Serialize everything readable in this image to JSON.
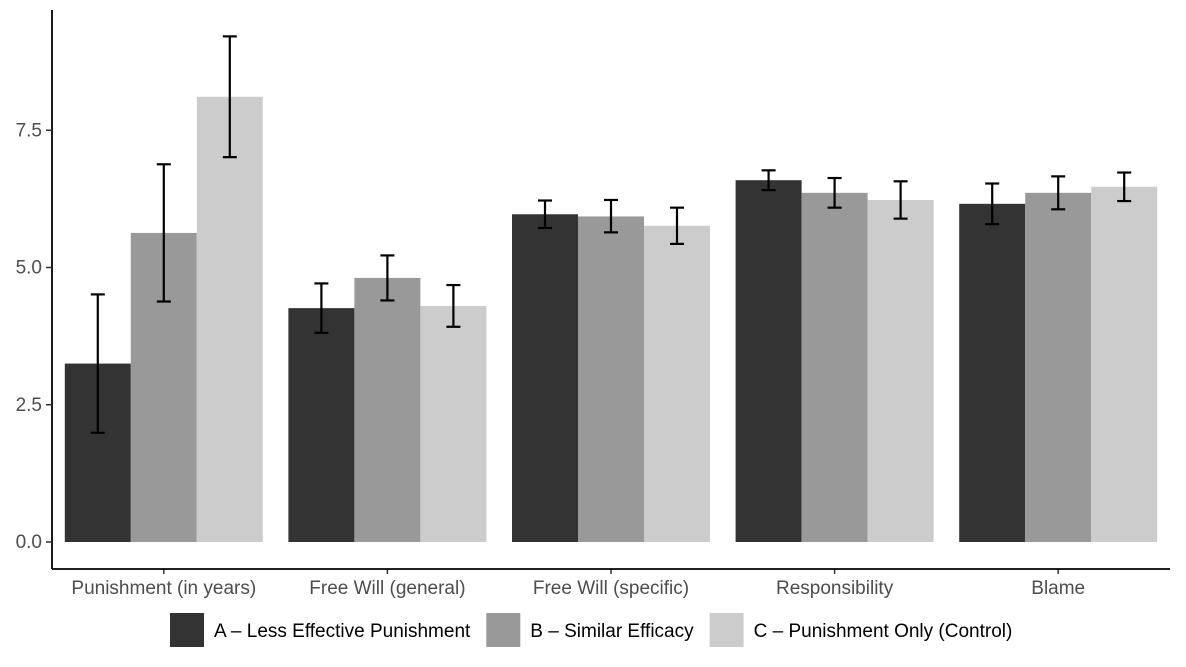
{
  "chart_data": {
    "type": "bar",
    "title": "",
    "xlabel": "",
    "ylabel": "",
    "ylim": [
      0,
      9.3
    ],
    "y_ticks": [
      "0.0",
      "2.5",
      "5.0",
      "7.5"
    ],
    "y_tick_values": [
      0,
      2.5,
      5,
      7.5
    ],
    "grid": false,
    "legend_position": "bottom",
    "categories": [
      "Punishment (in years)",
      "Free Will (general)",
      "Free Will (specific)",
      "Responsibility",
      "Blame"
    ],
    "series": [
      {
        "name": "A – Less Effective Punishment",
        "color": "#333333",
        "values": [
          3.25,
          4.26,
          5.97,
          6.59,
          6.16
        ],
        "error_low": [
          1.99,
          3.81,
          5.72,
          6.41,
          5.79
        ],
        "error_high": [
          4.51,
          4.71,
          6.22,
          6.77,
          6.53
        ]
      },
      {
        "name": "B – Similar Efficacy",
        "color": "#999999",
        "values": [
          5.63,
          4.81,
          5.93,
          6.36,
          6.36
        ],
        "error_low": [
          4.38,
          4.4,
          5.64,
          6.09,
          6.06
        ],
        "error_high": [
          6.88,
          5.22,
          6.23,
          6.63,
          6.66
        ]
      },
      {
        "name": "C – Punishment Only (Control)",
        "color": "#cccccc",
        "values": [
          8.11,
          4.3,
          5.76,
          6.23,
          6.47
        ],
        "error_low": [
          7.01,
          3.92,
          5.43,
          5.89,
          6.21
        ],
        "error_high": [
          9.21,
          4.68,
          6.09,
          6.57,
          6.73
        ]
      }
    ]
  }
}
